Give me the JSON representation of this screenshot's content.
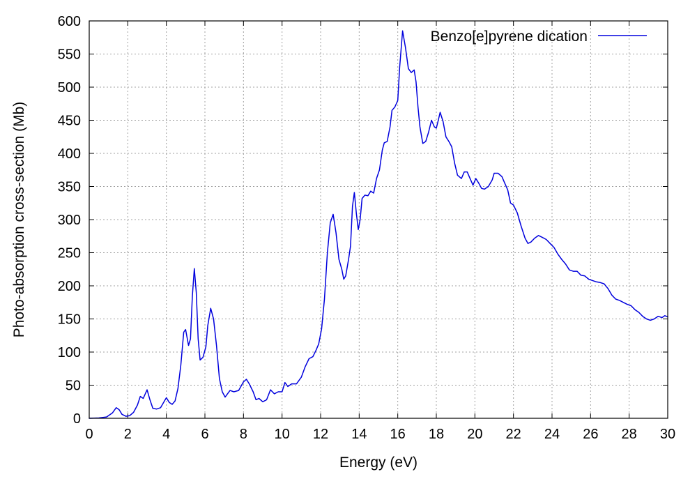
{
  "chart_data": {
    "type": "line",
    "title": "",
    "xlabel": "Energy (eV)",
    "ylabel": "Photo-absorption cross-section (Mb)",
    "xlim": [
      0,
      30
    ],
    "ylim": [
      0,
      600
    ],
    "xticks": [
      0,
      2,
      4,
      6,
      8,
      10,
      12,
      14,
      16,
      18,
      20,
      22,
      24,
      26,
      28,
      30
    ],
    "yticks": [
      0,
      50,
      100,
      150,
      200,
      250,
      300,
      350,
      400,
      450,
      500,
      550,
      600
    ],
    "grid": true,
    "legend_position": "top-right",
    "series": [
      {
        "name": "Benzo[e]pyrene dication",
        "color": "#0000dd",
        "points": [
          [
            0,
            0
          ],
          [
            0.5,
            0.5
          ],
          [
            0.9,
            2
          ],
          [
            1.2,
            8
          ],
          [
            1.4,
            16
          ],
          [
            1.55,
            13
          ],
          [
            1.7,
            6
          ],
          [
            1.9,
            3
          ],
          [
            2.1,
            4
          ],
          [
            2.3,
            9
          ],
          [
            2.5,
            20
          ],
          [
            2.65,
            33
          ],
          [
            2.8,
            30
          ],
          [
            3.0,
            43
          ],
          [
            3.15,
            28
          ],
          [
            3.3,
            15
          ],
          [
            3.5,
            14
          ],
          [
            3.7,
            16
          ],
          [
            3.9,
            26
          ],
          [
            4.0,
            31
          ],
          [
            4.15,
            24
          ],
          [
            4.3,
            21
          ],
          [
            4.45,
            26
          ],
          [
            4.6,
            45
          ],
          [
            4.75,
            80
          ],
          [
            4.9,
            130
          ],
          [
            5.0,
            134
          ],
          [
            5.15,
            110
          ],
          [
            5.25,
            120
          ],
          [
            5.35,
            185
          ],
          [
            5.45,
            226
          ],
          [
            5.55,
            190
          ],
          [
            5.65,
            120
          ],
          [
            5.75,
            88
          ],
          [
            5.9,
            92
          ],
          [
            6.05,
            108
          ],
          [
            6.15,
            140
          ],
          [
            6.3,
            166
          ],
          [
            6.45,
            150
          ],
          [
            6.6,
            110
          ],
          [
            6.75,
            60
          ],
          [
            6.9,
            40
          ],
          [
            7.05,
            32
          ],
          [
            7.3,
            42
          ],
          [
            7.5,
            40
          ],
          [
            7.75,
            42
          ],
          [
            8.0,
            55
          ],
          [
            8.15,
            59
          ],
          [
            8.3,
            52
          ],
          [
            8.5,
            40
          ],
          [
            8.65,
            28
          ],
          [
            8.8,
            30
          ],
          [
            9.0,
            25
          ],
          [
            9.2,
            28
          ],
          [
            9.4,
            43
          ],
          [
            9.6,
            37
          ],
          [
            9.8,
            40
          ],
          [
            10.0,
            40
          ],
          [
            10.15,
            54
          ],
          [
            10.3,
            48
          ],
          [
            10.5,
            52
          ],
          [
            10.75,
            52
          ],
          [
            11.0,
            62
          ],
          [
            11.2,
            78
          ],
          [
            11.4,
            90
          ],
          [
            11.6,
            93
          ],
          [
            11.75,
            102
          ],
          [
            11.9,
            112
          ],
          [
            12.05,
            135
          ],
          [
            12.2,
            180
          ],
          [
            12.35,
            250
          ],
          [
            12.5,
            295
          ],
          [
            12.65,
            308
          ],
          [
            12.8,
            280
          ],
          [
            12.95,
            240
          ],
          [
            13.1,
            225
          ],
          [
            13.2,
            210
          ],
          [
            13.3,
            215
          ],
          [
            13.45,
            240
          ],
          [
            13.55,
            260
          ],
          [
            13.65,
            320
          ],
          [
            13.75,
            341
          ],
          [
            13.85,
            310
          ],
          [
            13.95,
            285
          ],
          [
            14.05,
            300
          ],
          [
            14.15,
            332
          ],
          [
            14.3,
            337
          ],
          [
            14.45,
            336
          ],
          [
            14.6,
            343
          ],
          [
            14.75,
            340
          ],
          [
            14.9,
            362
          ],
          [
            15.05,
            375
          ],
          [
            15.2,
            405
          ],
          [
            15.3,
            416
          ],
          [
            15.45,
            418
          ],
          [
            15.6,
            440
          ],
          [
            15.7,
            465
          ],
          [
            15.85,
            470
          ],
          [
            16.0,
            480
          ],
          [
            16.1,
            530
          ],
          [
            16.25,
            585
          ],
          [
            16.4,
            560
          ],
          [
            16.55,
            528
          ],
          [
            16.7,
            522
          ],
          [
            16.85,
            526
          ],
          [
            16.95,
            508
          ],
          [
            17.05,
            470
          ],
          [
            17.15,
            440
          ],
          [
            17.3,
            415
          ],
          [
            17.45,
            418
          ],
          [
            17.6,
            432
          ],
          [
            17.75,
            450
          ],
          [
            17.9,
            440
          ],
          [
            18.0,
            438
          ],
          [
            18.1,
            450
          ],
          [
            18.2,
            462
          ],
          [
            18.35,
            448
          ],
          [
            18.5,
            425
          ],
          [
            18.65,
            418
          ],
          [
            18.8,
            410
          ],
          [
            18.95,
            385
          ],
          [
            19.1,
            367
          ],
          [
            19.3,
            362
          ],
          [
            19.45,
            372
          ],
          [
            19.6,
            372
          ],
          [
            19.75,
            362
          ],
          [
            19.9,
            352
          ],
          [
            20.05,
            362
          ],
          [
            20.2,
            355
          ],
          [
            20.35,
            347
          ],
          [
            20.5,
            346
          ],
          [
            20.7,
            350
          ],
          [
            20.9,
            360
          ],
          [
            21.0,
            370
          ],
          [
            21.2,
            370
          ],
          [
            21.4,
            365
          ],
          [
            21.55,
            355
          ],
          [
            21.7,
            345
          ],
          [
            21.85,
            325
          ],
          [
            22.0,
            322
          ],
          [
            22.2,
            310
          ],
          [
            22.4,
            290
          ],
          [
            22.6,
            272
          ],
          [
            22.75,
            264
          ],
          [
            22.9,
            266
          ],
          [
            23.1,
            272
          ],
          [
            23.3,
            276
          ],
          [
            23.5,
            273
          ],
          [
            23.7,
            270
          ],
          [
            23.9,
            264
          ],
          [
            24.1,
            258
          ],
          [
            24.3,
            248
          ],
          [
            24.5,
            240
          ],
          [
            24.7,
            233
          ],
          [
            24.9,
            224
          ],
          [
            25.1,
            222
          ],
          [
            25.3,
            222
          ],
          [
            25.5,
            216
          ],
          [
            25.7,
            215
          ],
          [
            25.9,
            210
          ],
          [
            26.1,
            208
          ],
          [
            26.3,
            206
          ],
          [
            26.5,
            205
          ],
          [
            26.7,
            203
          ],
          [
            26.9,
            196
          ],
          [
            27.1,
            186
          ],
          [
            27.3,
            180
          ],
          [
            27.5,
            178
          ],
          [
            27.7,
            175
          ],
          [
            27.9,
            172
          ],
          [
            28.1,
            170
          ],
          [
            28.3,
            164
          ],
          [
            28.5,
            160
          ],
          [
            28.7,
            154
          ],
          [
            28.9,
            150
          ],
          [
            29.1,
            148
          ],
          [
            29.3,
            150
          ],
          [
            29.5,
            154
          ],
          [
            29.7,
            152
          ],
          [
            29.85,
            155
          ],
          [
            30.0,
            153
          ]
        ]
      }
    ]
  }
}
